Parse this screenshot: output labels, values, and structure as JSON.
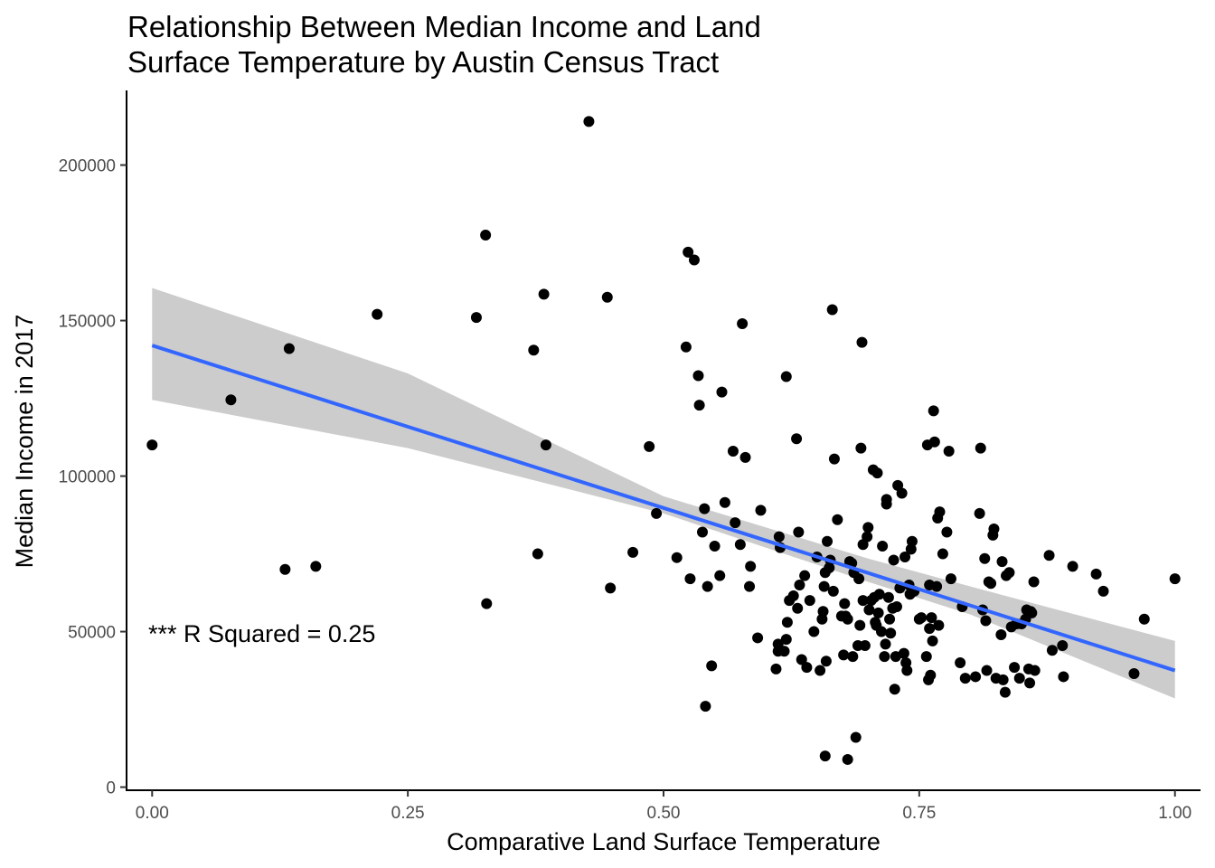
{
  "chart_data": {
    "type": "scatter",
    "title": "Relationship Between Median Income and Land\nSurface Temperature by Austin Census Tract",
    "xlabel": "Comparative Land Surface Temperature",
    "ylabel": "Median Income in 2017",
    "xlim": [
      -0.025,
      1.025
    ],
    "ylim": [
      -1000,
      224000
    ],
    "x_ticks": [
      0,
      0.25,
      0.5,
      0.75,
      1
    ],
    "x_tick_labels": [
      "0.00",
      "0.25",
      "0.50",
      "0.75",
      "1.00"
    ],
    "y_ticks": [
      0,
      50000,
      100000,
      150000,
      200000
    ],
    "y_tick_labels": [
      "0",
      "50000",
      "100000",
      "150000",
      "200000"
    ],
    "grid": false,
    "annotation": "*** R Squared = 0.25",
    "point_color": "#000000",
    "fit_line": {
      "color": "#3366FF",
      "x": [
        0,
        1
      ],
      "y": [
        142000,
        37500
      ]
    },
    "confidence_band": {
      "color": "#CCCCCC",
      "x": [
        0,
        0.25,
        0.5,
        0.7,
        0.8,
        1
      ],
      "lower": [
        124500,
        109000,
        88000,
        66000,
        55500,
        28500
      ],
      "upper": [
        160500,
        133000,
        93500,
        73500,
        64500,
        47000
      ]
    },
    "points": [
      [
        0.0,
        110000
      ],
      [
        0.077,
        124500
      ],
      [
        0.13,
        70000
      ],
      [
        0.134,
        141000
      ],
      [
        0.16,
        71000
      ],
      [
        0.22,
        152000
      ],
      [
        0.317,
        151000
      ],
      [
        0.326,
        177500
      ],
      [
        0.327,
        59000
      ],
      [
        0.373,
        140500
      ],
      [
        0.377,
        75000
      ],
      [
        0.383,
        158500
      ],
      [
        0.385,
        110000
      ],
      [
        0.427,
        214000
      ],
      [
        0.445,
        157500
      ],
      [
        0.448,
        64000
      ],
      [
        0.47,
        75500
      ],
      [
        0.486,
        109500
      ],
      [
        0.493,
        88000
      ],
      [
        0.513,
        73800
      ],
      [
        0.522,
        141500
      ],
      [
        0.524,
        172000
      ],
      [
        0.526,
        67000
      ],
      [
        0.53,
        169500
      ],
      [
        0.534,
        132300
      ],
      [
        0.535,
        122800
      ],
      [
        0.538,
        82000
      ],
      [
        0.54,
        89500
      ],
      [
        0.541,
        26000
      ],
      [
        0.543,
        64500
      ],
      [
        0.547,
        39000
      ],
      [
        0.55,
        77500
      ],
      [
        0.555,
        68000
      ],
      [
        0.557,
        127000
      ],
      [
        0.56,
        91500
      ],
      [
        0.568,
        108000
      ],
      [
        0.57,
        85000
      ],
      [
        0.575,
        78000
      ],
      [
        0.577,
        149000
      ],
      [
        0.58,
        106000
      ],
      [
        0.584,
        64500
      ],
      [
        0.585,
        71000
      ],
      [
        0.592,
        48000
      ],
      [
        0.595,
        89000
      ],
      [
        0.61,
        38000
      ],
      [
        0.612,
        46000
      ],
      [
        0.612,
        43700
      ],
      [
        0.613,
        80500
      ],
      [
        0.614,
        77000
      ],
      [
        0.618,
        43700
      ],
      [
        0.62,
        47500
      ],
      [
        0.62,
        132000
      ],
      [
        0.621,
        53000
      ],
      [
        0.623,
        60000
      ],
      [
        0.627,
        61500
      ],
      [
        0.63,
        112000
      ],
      [
        0.631,
        57500
      ],
      [
        0.632,
        82000
      ],
      [
        0.633,
        65000
      ],
      [
        0.635,
        41000
      ],
      [
        0.638,
        68000
      ],
      [
        0.64,
        38500
      ],
      [
        0.643,
        60000
      ],
      [
        0.647,
        50000
      ],
      [
        0.65,
        74000
      ],
      [
        0.653,
        37500
      ],
      [
        0.655,
        54000
      ],
      [
        0.656,
        56500
      ],
      [
        0.657,
        64500
      ],
      [
        0.658,
        69000
      ],
      [
        0.658,
        10000
      ],
      [
        0.659,
        40500
      ],
      [
        0.66,
        79000
      ],
      [
        0.662,
        70500
      ],
      [
        0.663,
        73000
      ],
      [
        0.665,
        153500
      ],
      [
        0.666,
        63000
      ],
      [
        0.667,
        105500
      ],
      [
        0.67,
        86000
      ],
      [
        0.674,
        55000
      ],
      [
        0.676,
        42500
      ],
      [
        0.677,
        59000
      ],
      [
        0.678,
        55000
      ],
      [
        0.68,
        54000
      ],
      [
        0.68,
        8900
      ],
      [
        0.682,
        72500
      ],
      [
        0.684,
        72000
      ],
      [
        0.685,
        42000
      ],
      [
        0.686,
        69000
      ],
      [
        0.688,
        16000
      ],
      [
        0.69,
        45500
      ],
      [
        0.691,
        67000
      ],
      [
        0.692,
        52000
      ],
      [
        0.693,
        109000
      ],
      [
        0.694,
        143000
      ],
      [
        0.695,
        60000
      ],
      [
        0.695,
        78000
      ],
      [
        0.697,
        45500
      ],
      [
        0.699,
        80500
      ],
      [
        0.7,
        83500
      ],
      [
        0.701,
        57000
      ],
      [
        0.703,
        60000
      ],
      [
        0.705,
        102000
      ],
      [
        0.706,
        61000
      ],
      [
        0.707,
        53000
      ],
      [
        0.708,
        52000
      ],
      [
        0.709,
        101000
      ],
      [
        0.71,
        56000
      ],
      [
        0.711,
        62000
      ],
      [
        0.713,
        50000
      ],
      [
        0.714,
        77500
      ],
      [
        0.716,
        42000
      ],
      [
        0.717,
        46000
      ],
      [
        0.718,
        92500
      ],
      [
        0.718,
        91000
      ],
      [
        0.72,
        61000
      ],
      [
        0.721,
        54000
      ],
      [
        0.722,
        49500
      ],
      [
        0.724,
        57500
      ],
      [
        0.725,
        73000
      ],
      [
        0.726,
        31500
      ],
      [
        0.727,
        42000
      ],
      [
        0.728,
        58000
      ],
      [
        0.729,
        97000
      ],
      [
        0.731,
        64000
      ],
      [
        0.733,
        94500
      ],
      [
        0.735,
        43000
      ],
      [
        0.736,
        74000
      ],
      [
        0.737,
        40000
      ],
      [
        0.738,
        37500
      ],
      [
        0.74,
        65000
      ],
      [
        0.741,
        62000
      ],
      [
        0.742,
        76500
      ],
      [
        0.743,
        79000
      ],
      [
        0.745,
        63000
      ],
      [
        0.75,
        54000
      ],
      [
        0.752,
        54500
      ],
      [
        0.757,
        42000
      ],
      [
        0.758,
        110000
      ],
      [
        0.759,
        34500
      ],
      [
        0.76,
        65000
      ],
      [
        0.76,
        51000
      ],
      [
        0.761,
        36000
      ],
      [
        0.762,
        54500
      ],
      [
        0.763,
        47000
      ],
      [
        0.764,
        121000
      ],
      [
        0.765,
        111000
      ],
      [
        0.767,
        64500
      ],
      [
        0.768,
        86500
      ],
      [
        0.769,
        52000
      ],
      [
        0.77,
        88500
      ],
      [
        0.773,
        75000
      ],
      [
        0.777,
        82000
      ],
      [
        0.779,
        108000
      ],
      [
        0.781,
        67000
      ],
      [
        0.79,
        40000
      ],
      [
        0.792,
        58000
      ],
      [
        0.795,
        35000
      ],
      [
        0.805,
        35500
      ],
      [
        0.809,
        88000
      ],
      [
        0.81,
        109000
      ],
      [
        0.812,
        57000
      ],
      [
        0.814,
        73500
      ],
      [
        0.815,
        53500
      ],
      [
        0.816,
        37500
      ],
      [
        0.818,
        66000
      ],
      [
        0.82,
        65500
      ],
      [
        0.822,
        81000
      ],
      [
        0.823,
        83000
      ],
      [
        0.825,
        35000
      ],
      [
        0.83,
        49000
      ],
      [
        0.831,
        72500
      ],
      [
        0.832,
        34500
      ],
      [
        0.834,
        30500
      ],
      [
        0.835,
        68000
      ],
      [
        0.838,
        69000
      ],
      [
        0.84,
        51500
      ],
      [
        0.843,
        38500
      ],
      [
        0.845,
        52500
      ],
      [
        0.848,
        35000
      ],
      [
        0.85,
        52500
      ],
      [
        0.854,
        54000
      ],
      [
        0.855,
        57000
      ],
      [
        0.857,
        38000
      ],
      [
        0.858,
        33500
      ],
      [
        0.859,
        56500
      ],
      [
        0.86,
        56000
      ],
      [
        0.862,
        66000
      ],
      [
        0.863,
        37500
      ],
      [
        0.877,
        74500
      ],
      [
        0.88,
        44000
      ],
      [
        0.89,
        45500
      ],
      [
        0.891,
        35500
      ],
      [
        0.9,
        71000
      ],
      [
        0.923,
        68500
      ],
      [
        0.93,
        63000
      ],
      [
        0.96,
        36500
      ],
      [
        0.97,
        54000
      ],
      [
        1.0,
        67000
      ]
    ]
  }
}
